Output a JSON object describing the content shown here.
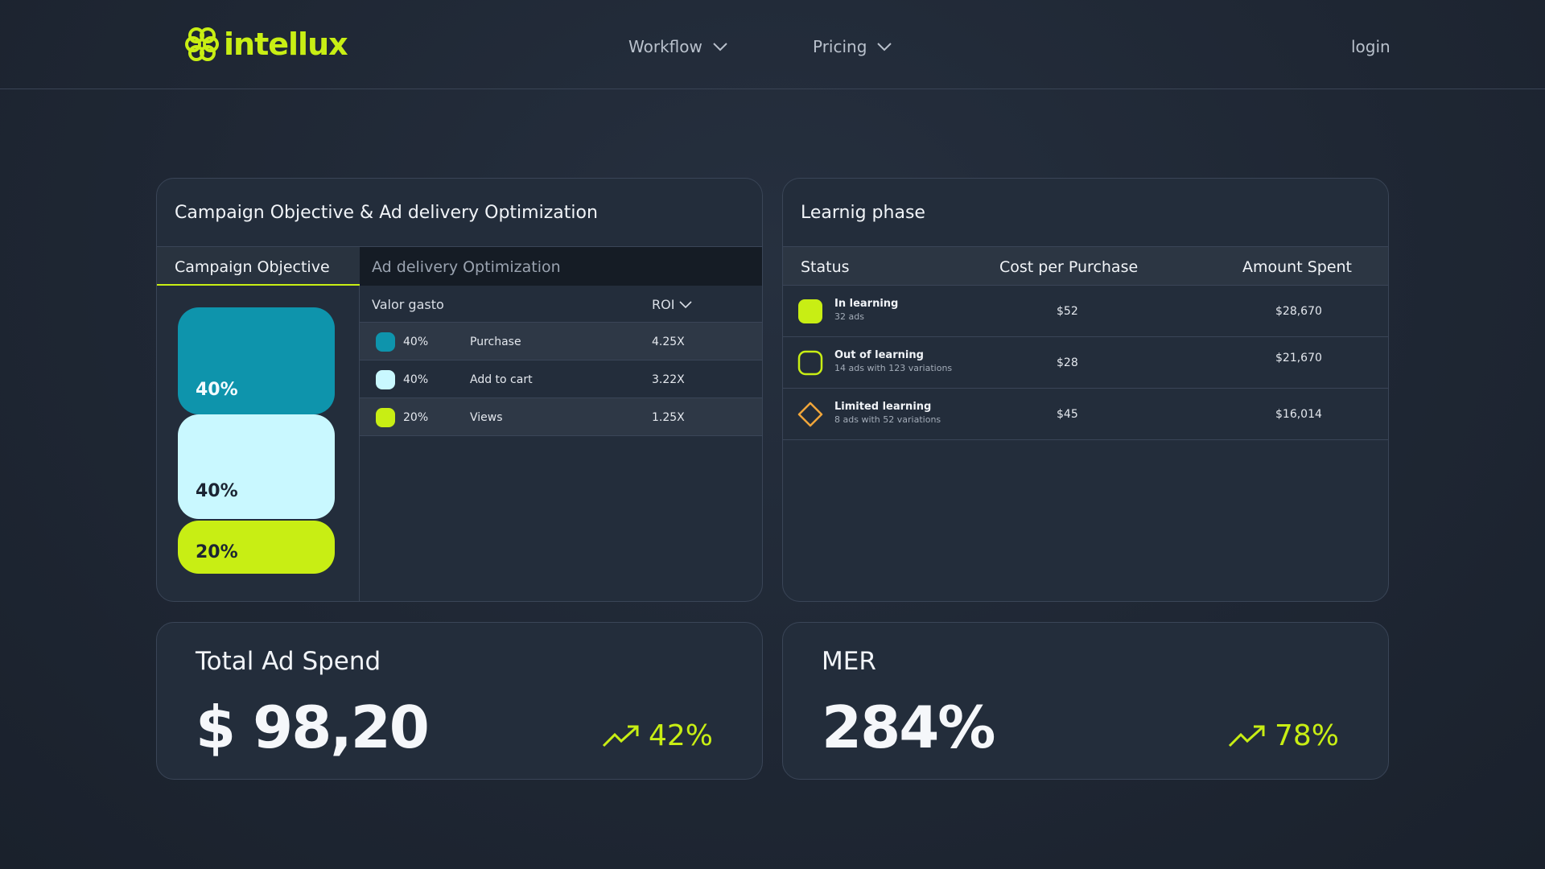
{
  "header": {
    "logo_text": "intellux",
    "nav": [
      {
        "label": "Workflow"
      },
      {
        "label": "Pricing"
      }
    ],
    "login_label": "login"
  },
  "campaign_card": {
    "title": "Campaign Objective & Ad delivery Optimization",
    "tabs": [
      "Campaign Objective",
      "Ad delivery Optimization"
    ],
    "stack": [
      "40%",
      "40%",
      "20%"
    ],
    "table": {
      "col_spend": "Valor gasto",
      "col_roi": "ROI",
      "rows": [
        {
          "pct": "40%",
          "name": "Purchase",
          "roi": "4.25X",
          "color": "#0e94ac"
        },
        {
          "pct": "40%",
          "name": "Add to cart",
          "roi": "3.22X",
          "color": "#c9f8ff"
        },
        {
          "pct": "20%",
          "name": "Views",
          "roi": "1.25X",
          "color": "#c8ee14"
        }
      ]
    }
  },
  "learning_card": {
    "title": "Learnig phase",
    "headers": [
      "Status",
      "Cost per Purchase",
      "Amount Spent"
    ],
    "rows": [
      {
        "title": "In learning",
        "sub": "32 ads",
        "cost": "$52",
        "amount": "$28,670",
        "icon": "filled-square-icon"
      },
      {
        "title": "Out of learning",
        "sub": "14 ads with 123 variations",
        "cost": "$28",
        "amount": "$21,670",
        "icon": "outline-square-icon"
      },
      {
        "title": "Limited learning",
        "sub": "8 ads with 52 variations",
        "cost": "$45",
        "amount": "$16,014",
        "icon": "outline-diamond-icon"
      }
    ]
  },
  "metrics": {
    "spend": {
      "title": "Total Ad Spend",
      "value": "$ 98,20",
      "change": "42%"
    },
    "mer": {
      "title": "MER",
      "value": "284%",
      "change": "78%"
    }
  },
  "colors": {
    "accent": "#c8ee14",
    "teal": "#0e94ac",
    "ice": "#c9f8ff",
    "orange": "#f0a53a"
  }
}
